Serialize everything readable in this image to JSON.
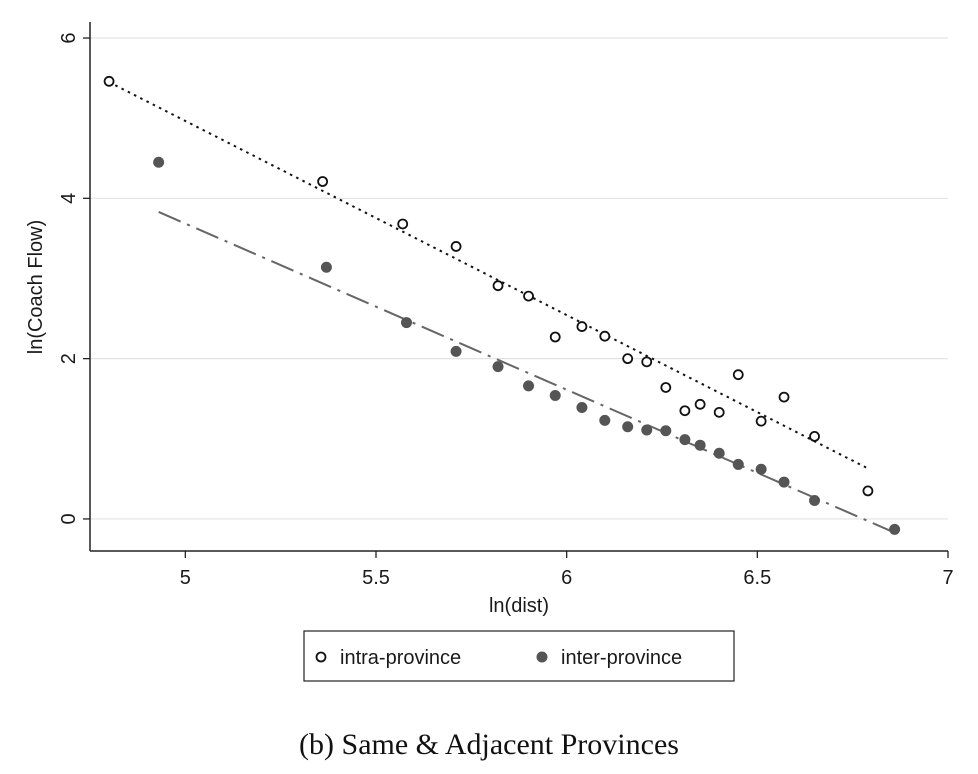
{
  "caption": "(b) Same & Adjacent Provinces",
  "chart_data": {
    "type": "scatter",
    "xlabel": "ln(dist)",
    "ylabel": "ln(Coach Flow)",
    "xlim": [
      4.75,
      7.0
    ],
    "ylim": [
      -0.4,
      6.2
    ],
    "xticks": [
      5,
      5.5,
      6,
      6.5,
      7
    ],
    "xtick_labels": [
      "5",
      "5.5",
      "6",
      "6.5",
      "7"
    ],
    "yticks": [
      0,
      2,
      4,
      6
    ],
    "ytick_labels": [
      "0",
      "2",
      "4",
      "6"
    ],
    "grid": "horizontal",
    "legend_position": "bottom-center",
    "series": [
      {
        "name": "intra-province",
        "marker": "hollow-circle",
        "color": "#111111",
        "x": [
          4.8,
          5.36,
          5.57,
          5.71,
          5.82,
          5.9,
          5.97,
          6.04,
          6.1,
          6.16,
          6.21,
          6.26,
          6.31,
          6.35,
          6.4,
          6.45,
          6.51,
          6.57,
          6.65,
          6.79
        ],
        "y": [
          5.46,
          4.21,
          3.68,
          3.4,
          2.91,
          2.78,
          2.27,
          2.4,
          2.28,
          2.0,
          1.96,
          1.64,
          1.35,
          1.43,
          1.33,
          1.8,
          1.22,
          1.52,
          1.03,
          0.35
        ]
      },
      {
        "name": "inter-province",
        "marker": "filled-circle",
        "color": "#555555",
        "x": [
          4.93,
          5.37,
          5.58,
          5.71,
          5.82,
          5.9,
          5.97,
          6.04,
          6.1,
          6.16,
          6.21,
          6.26,
          6.31,
          6.35,
          6.4,
          6.45,
          6.51,
          6.57,
          6.65,
          6.86
        ],
        "y": [
          4.45,
          3.14,
          2.45,
          2.09,
          1.9,
          1.66,
          1.54,
          1.39,
          1.23,
          1.15,
          1.11,
          1.1,
          0.99,
          0.92,
          0.82,
          0.68,
          0.62,
          0.46,
          0.23,
          -0.13
        ]
      }
    ],
    "fit_lines": [
      {
        "series": "intra-province",
        "style": "dotted",
        "x": [
          4.8,
          6.79
        ],
        "y": [
          5.45,
          0.63
        ]
      },
      {
        "series": "inter-province",
        "style": "dash-dot",
        "x": [
          4.93,
          6.85
        ],
        "y": [
          3.83,
          -0.15
        ]
      }
    ]
  }
}
